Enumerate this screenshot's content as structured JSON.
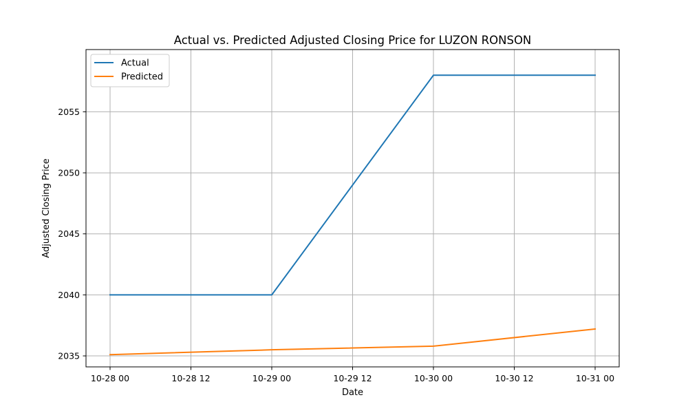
{
  "chart_data": {
    "type": "line",
    "title": "Actual vs. Predicted Adjusted Closing Price for LUZON RONSON",
    "xlabel": "Date",
    "ylabel": "Adjusted Closing Price",
    "x": [
      "10-28 00",
      "10-29 00",
      "10-30 00",
      "10-31 00"
    ],
    "x_ticks": [
      "10-28 00",
      "10-28 12",
      "10-29 00",
      "10-29 12",
      "10-30 00",
      "10-30 12",
      "10-31 00"
    ],
    "y_ticks": [
      2035,
      2040,
      2045,
      2050,
      2055
    ],
    "ylim": [
      2034.1,
      2060.1
    ],
    "series": [
      {
        "name": "Actual",
        "color": "#1f77b4",
        "values": [
          2040,
          2040,
          2058,
          2058
        ]
      },
      {
        "name": "Predicted",
        "color": "#ff7f0e",
        "values": [
          2035.1,
          2035.5,
          2035.8,
          2037.2
        ]
      }
    ],
    "legend": "top-left",
    "grid": true
  }
}
